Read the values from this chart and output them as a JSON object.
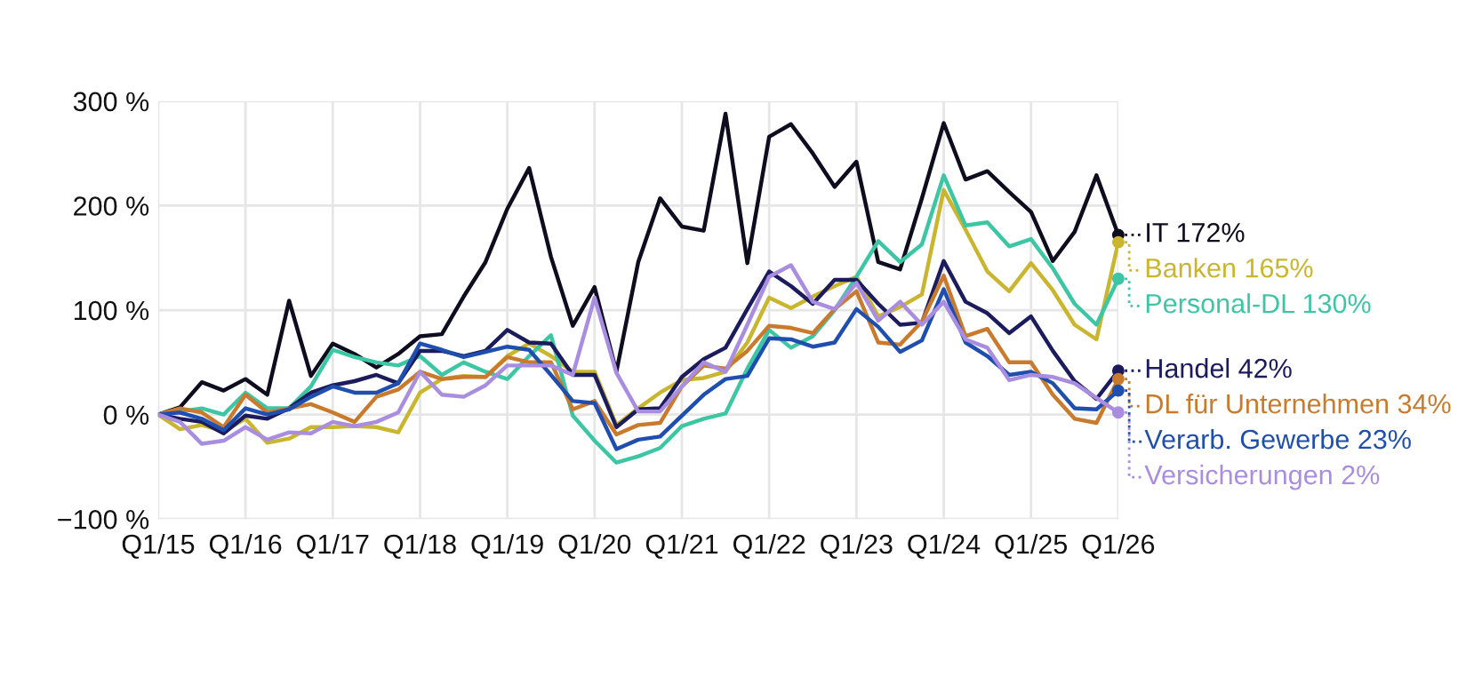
{
  "chart_data": {
    "type": "line",
    "categories": [
      "Q1/15",
      null,
      null,
      null,
      "Q1/16",
      null,
      null,
      null,
      "Q1/17",
      null,
      null,
      null,
      "Q1/18",
      null,
      null,
      null,
      "Q1/19",
      null,
      null,
      null,
      "Q1/20",
      null,
      null,
      null,
      "Q1/21",
      null,
      null,
      null,
      "Q1/22",
      null,
      null,
      null,
      "Q1/23",
      null,
      null,
      null,
      "Q1/24",
      null,
      null,
      null,
      "Q1/25",
      null,
      null,
      null,
      "Q1/26"
    ],
    "ylim": [
      -100,
      300
    ],
    "yticks": [
      {
        "value": -100,
        "label": "−100 %"
      },
      {
        "value": 0,
        "label": "0 %"
      },
      {
        "value": 100,
        "label": "100 %"
      },
      {
        "value": 200,
        "label": "200 %"
      },
      {
        "value": 300,
        "label": "300 %"
      }
    ],
    "grid": true,
    "legend": false,
    "series": [
      {
        "name": "IT",
        "color": "#0d0d1f",
        "values": [
          0,
          7,
          31,
          23,
          34,
          19,
          109,
          37,
          68,
          58,
          45,
          58,
          75,
          77,
          113,
          146,
          197,
          236,
          151,
          85,
          122,
          41,
          146,
          207,
          180,
          176,
          288,
          145,
          266,
          278,
          250,
          218,
          242,
          146,
          139,
          207,
          279,
          225,
          233,
          213,
          194,
          147,
          175,
          229,
          172
        ],
        "value_labels": [
          null,
          null,
          null,
          null,
          null,
          null,
          null,
          null,
          null,
          null,
          null,
          null,
          null,
          null,
          null,
          null,
          null,
          null,
          null,
          null,
          null,
          null,
          null,
          null,
          null,
          null,
          null,
          null,
          null,
          null,
          null,
          null,
          null,
          null,
          null,
          null,
          null,
          null,
          null,
          null,
          null,
          null,
          null,
          null,
          "172%"
        ]
      },
      {
        "name": "Banken",
        "color": "#c9b62e",
        "values": [
          0,
          -14,
          -10,
          -16,
          -4,
          -27,
          -23,
          -12,
          -12,
          -11,
          -12,
          -17,
          21,
          34,
          37,
          36,
          56,
          68,
          56,
          41,
          41,
          -10,
          6,
          21,
          33,
          35,
          41,
          69,
          112,
          102,
          113,
          123,
          132,
          94,
          103,
          115,
          215,
          177,
          137,
          118,
          145,
          119,
          86,
          72,
          165
        ],
        "value_labels": [
          null,
          null,
          null,
          null,
          null,
          null,
          null,
          null,
          null,
          null,
          null,
          null,
          null,
          null,
          null,
          null,
          null,
          null,
          null,
          null,
          null,
          null,
          null,
          null,
          null,
          null,
          null,
          null,
          null,
          null,
          null,
          null,
          null,
          null,
          null,
          null,
          null,
          null,
          null,
          null,
          null,
          null,
          null,
          null,
          "165%"
        ]
      },
      {
        "name": "Personal-DL",
        "color": "#3cc6a4",
        "values": [
          0,
          3,
          6,
          0,
          21,
          6,
          6,
          27,
          62,
          55,
          50,
          47,
          56,
          38,
          50,
          41,
          34,
          56,
          76,
          -1,
          -25,
          -46,
          -40,
          -32,
          -11,
          -4,
          1,
          44,
          81,
          64,
          75,
          100,
          132,
          166,
          146,
          163,
          229,
          181,
          184,
          161,
          168,
          140,
          106,
          86,
          130
        ],
        "value_labels": [
          null,
          null,
          null,
          null,
          null,
          null,
          null,
          null,
          null,
          null,
          null,
          null,
          null,
          null,
          null,
          null,
          null,
          null,
          null,
          null,
          null,
          null,
          null,
          null,
          null,
          null,
          null,
          null,
          null,
          null,
          null,
          null,
          null,
          null,
          null,
          null,
          null,
          null,
          null,
          null,
          null,
          null,
          null,
          null,
          "130%"
        ]
      },
      {
        "name": "Handel",
        "color": "#1b1b5e",
        "values": [
          0,
          -4,
          -7,
          -18,
          -1,
          -4,
          6,
          21,
          28,
          32,
          38,
          30,
          61,
          61,
          56,
          61,
          81,
          69,
          68,
          38,
          38,
          -12,
          5,
          6,
          36,
          53,
          64,
          101,
          137,
          123,
          106,
          129,
          129,
          106,
          86,
          88,
          147,
          108,
          97,
          78,
          94,
          61,
          32,
          15,
          42
        ],
        "value_labels": [
          null,
          null,
          null,
          null,
          null,
          null,
          null,
          null,
          null,
          null,
          null,
          null,
          null,
          null,
          null,
          null,
          null,
          null,
          null,
          null,
          null,
          null,
          null,
          null,
          null,
          null,
          null,
          null,
          null,
          null,
          null,
          null,
          null,
          null,
          null,
          null,
          null,
          null,
          null,
          null,
          null,
          null,
          null,
          null,
          "42%"
        ]
      },
      {
        "name": "DL für Unternehmen",
        "color": "#c97a2c",
        "values": [
          0,
          6,
          2,
          -12,
          19,
          2,
          6,
          10,
          2,
          -7,
          17,
          24,
          41,
          34,
          36,
          36,
          55,
          50,
          50,
          5,
          13,
          -19,
          -10,
          -8,
          27,
          47,
          44,
          61,
          85,
          83,
          78,
          101,
          118,
          69,
          67,
          89,
          133,
          75,
          82,
          50,
          50,
          19,
          -4,
          -8,
          34
        ],
        "value_labels": [
          null,
          null,
          null,
          null,
          null,
          null,
          null,
          null,
          null,
          null,
          null,
          null,
          null,
          null,
          null,
          null,
          null,
          null,
          null,
          null,
          null,
          null,
          null,
          null,
          null,
          null,
          null,
          null,
          null,
          null,
          null,
          null,
          null,
          null,
          null,
          null,
          null,
          null,
          null,
          null,
          null,
          null,
          null,
          null,
          "34%"
        ]
      },
      {
        "name": "Verarb. Gewerbe",
        "color": "#1f4fae",
        "values": [
          0,
          2,
          -4,
          -15,
          6,
          0,
          5,
          17,
          27,
          21,
          21,
          30,
          68,
          62,
          55,
          60,
          65,
          62,
          38,
          13,
          11,
          -33,
          -24,
          -21,
          -1,
          19,
          34,
          37,
          73,
          72,
          65,
          69,
          101,
          84,
          60,
          71,
          120,
          69,
          56,
          38,
          41,
          30,
          6,
          5,
          23
        ],
        "value_labels": [
          null,
          null,
          null,
          null,
          null,
          null,
          null,
          null,
          null,
          null,
          null,
          null,
          null,
          null,
          null,
          null,
          null,
          null,
          null,
          null,
          null,
          null,
          null,
          null,
          null,
          null,
          null,
          null,
          null,
          null,
          null,
          null,
          null,
          null,
          null,
          null,
          null,
          null,
          null,
          null,
          null,
          null,
          null,
          null,
          "23%"
        ]
      },
      {
        "name": "Versicherungen",
        "color": "#a98de0",
        "values": [
          0,
          -7,
          -28,
          -25,
          -12,
          -24,
          -17,
          -18,
          -7,
          -11,
          -7,
          2,
          41,
          19,
          17,
          28,
          47,
          47,
          47,
          38,
          112,
          40,
          3,
          3,
          27,
          50,
          41,
          86,
          132,
          143,
          108,
          101,
          126,
          90,
          108,
          86,
          108,
          72,
          64,
          33,
          38,
          36,
          30,
          16,
          2
        ],
        "value_labels": [
          null,
          null,
          null,
          null,
          null,
          null,
          null,
          null,
          null,
          null,
          null,
          null,
          null,
          null,
          null,
          null,
          null,
          null,
          null,
          null,
          null,
          null,
          null,
          null,
          null,
          null,
          null,
          null,
          null,
          null,
          null,
          null,
          null,
          null,
          null,
          null,
          null,
          null,
          null,
          null,
          null,
          null,
          null,
          null,
          "2%"
        ]
      }
    ]
  }
}
